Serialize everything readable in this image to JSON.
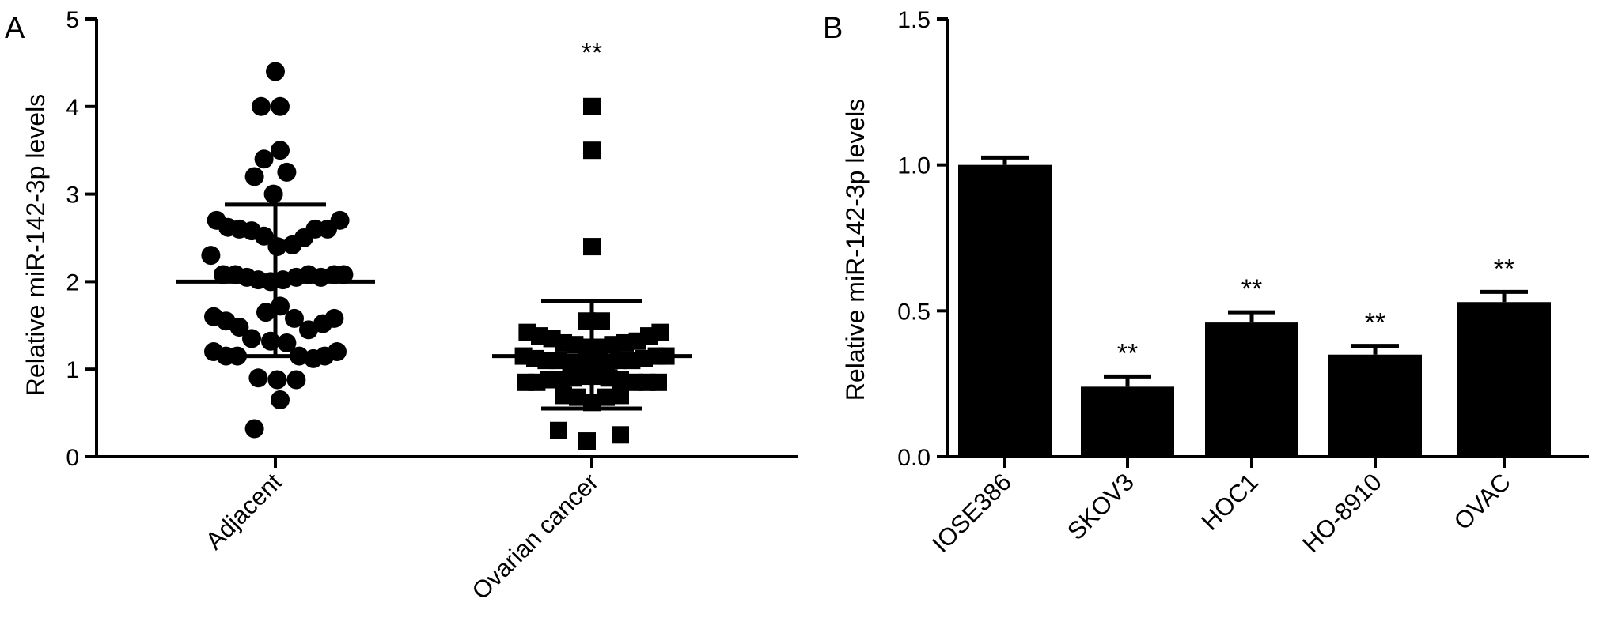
{
  "chart_data": [
    {
      "panel": "A",
      "type": "scatter",
      "ylabel": "Relative  miR-142-3p levels",
      "ylim": [
        0,
        5
      ],
      "yticks": [
        "0",
        "1",
        "2",
        "3",
        "4",
        "5"
      ],
      "categories": [
        "Adjacent",
        "Ovarian cancer"
      ],
      "annotations": [
        "",
        "**"
      ],
      "summary": [
        {
          "mean": 2.0,
          "upper": 2.88,
          "lower": 1.15
        },
        {
          "mean": 1.15,
          "upper": 1.78,
          "lower": 0.55
        }
      ],
      "series": [
        {
          "category": "Adjacent",
          "marker": "circle",
          "points": [
            [
              0,
              4.4
            ],
            [
              -0.15,
              4.0
            ],
            [
              0.05,
              4.0
            ],
            [
              -0.12,
              3.4
            ],
            [
              0.05,
              3.5
            ],
            [
              -0.22,
              3.2
            ],
            [
              0.12,
              3.25
            ],
            [
              -0.02,
              3.0
            ],
            [
              -0.62,
              2.7
            ],
            [
              -0.5,
              2.62
            ],
            [
              -0.38,
              2.6
            ],
            [
              -0.25,
              2.58
            ],
            [
              -0.12,
              2.52
            ],
            [
              0.02,
              2.4
            ],
            [
              0.18,
              2.42
            ],
            [
              0.3,
              2.5
            ],
            [
              0.42,
              2.6
            ],
            [
              0.55,
              2.6
            ],
            [
              0.68,
              2.7
            ],
            [
              -0.68,
              2.3
            ],
            [
              -0.55,
              2.08
            ],
            [
              -0.42,
              2.08
            ],
            [
              -0.3,
              2.05
            ],
            [
              -0.18,
              2.02
            ],
            [
              -0.05,
              2.0
            ],
            [
              0.08,
              2.02
            ],
            [
              0.22,
              2.05
            ],
            [
              0.35,
              2.08
            ],
            [
              0.48,
              2.05
            ],
            [
              0.62,
              2.08
            ],
            [
              0.72,
              2.08
            ],
            [
              -0.65,
              1.6
            ],
            [
              -0.52,
              1.55
            ],
            [
              -0.38,
              1.48
            ],
            [
              -0.1,
              1.65
            ],
            [
              0.05,
              1.72
            ],
            [
              0.2,
              1.58
            ],
            [
              0.35,
              1.45
            ],
            [
              0.5,
              1.52
            ],
            [
              0.62,
              1.58
            ],
            [
              -0.65,
              1.2
            ],
            [
              -0.52,
              1.15
            ],
            [
              -0.4,
              1.15
            ],
            [
              -0.25,
              1.35
            ],
            [
              -0.05,
              1.32
            ],
            [
              0.12,
              1.3
            ],
            [
              0.25,
              1.15
            ],
            [
              0.4,
              1.12
            ],
            [
              0.52,
              1.15
            ],
            [
              0.65,
              1.2
            ],
            [
              -0.18,
              0.9
            ],
            [
              0.02,
              0.88
            ],
            [
              0.22,
              0.88
            ],
            [
              0.05,
              0.65
            ],
            [
              -0.22,
              0.32
            ]
          ]
        },
        {
          "category": "Ovarian cancer",
          "marker": "square",
          "points": [
            [
              0,
              4.0
            ],
            [
              0,
              3.5
            ],
            [
              0,
              2.4
            ],
            [
              -0.05,
              1.55
            ],
            [
              0.1,
              1.55
            ],
            [
              -0.68,
              1.42
            ],
            [
              -0.55,
              1.38
            ],
            [
              -0.42,
              1.35
            ],
            [
              -0.3,
              1.3
            ],
            [
              -0.18,
              1.28
            ],
            [
              -0.05,
              1.25
            ],
            [
              0.08,
              1.25
            ],
            [
              0.22,
              1.28
            ],
            [
              0.35,
              1.3
            ],
            [
              0.48,
              1.32
            ],
            [
              0.6,
              1.38
            ],
            [
              0.72,
              1.42
            ],
            [
              -0.72,
              1.15
            ],
            [
              -0.6,
              1.12
            ],
            [
              -0.48,
              1.1
            ],
            [
              -0.35,
              1.1
            ],
            [
              -0.22,
              1.08
            ],
            [
              -0.1,
              1.05
            ],
            [
              0.02,
              1.05
            ],
            [
              0.15,
              1.08
            ],
            [
              0.28,
              1.1
            ],
            [
              0.42,
              1.1
            ],
            [
              0.55,
              1.12
            ],
            [
              0.68,
              1.15
            ],
            [
              0.78,
              1.15
            ],
            [
              -0.7,
              0.85
            ],
            [
              -0.58,
              0.85
            ],
            [
              -0.45,
              0.88
            ],
            [
              -0.32,
              0.88
            ],
            [
              -0.2,
              0.9
            ],
            [
              -0.08,
              0.92
            ],
            [
              0.05,
              0.92
            ],
            [
              0.18,
              0.9
            ],
            [
              0.3,
              0.88
            ],
            [
              0.45,
              0.85
            ],
            [
              0.58,
              0.85
            ],
            [
              0.7,
              0.85
            ],
            [
              -0.3,
              0.7
            ],
            [
              -0.15,
              0.68
            ],
            [
              0.0,
              0.62
            ],
            [
              0.15,
              0.68
            ],
            [
              0.3,
              0.7
            ],
            [
              -0.35,
              0.3
            ],
            [
              -0.05,
              0.18
            ],
            [
              0.3,
              0.25
            ]
          ]
        }
      ]
    },
    {
      "panel": "B",
      "type": "bar",
      "ylabel": "Relative  miR-142-3p levels",
      "ylim": [
        0,
        1.5
      ],
      "yticks": [
        "0.0",
        "0.5",
        "1.0",
        "1.5"
      ],
      "categories": [
        "IOSE386",
        "SKOV3",
        "HOC1",
        "HO-8910",
        "OVAC"
      ],
      "values": [
        1.0,
        0.24,
        0.46,
        0.35,
        0.53
      ],
      "errors": [
        0.025,
        0.035,
        0.035,
        0.03,
        0.035
      ],
      "annotations": [
        "",
        "**",
        "**",
        "**",
        "**"
      ]
    }
  ],
  "colors": {
    "ink": "#000000",
    "background": "#ffffff"
  }
}
